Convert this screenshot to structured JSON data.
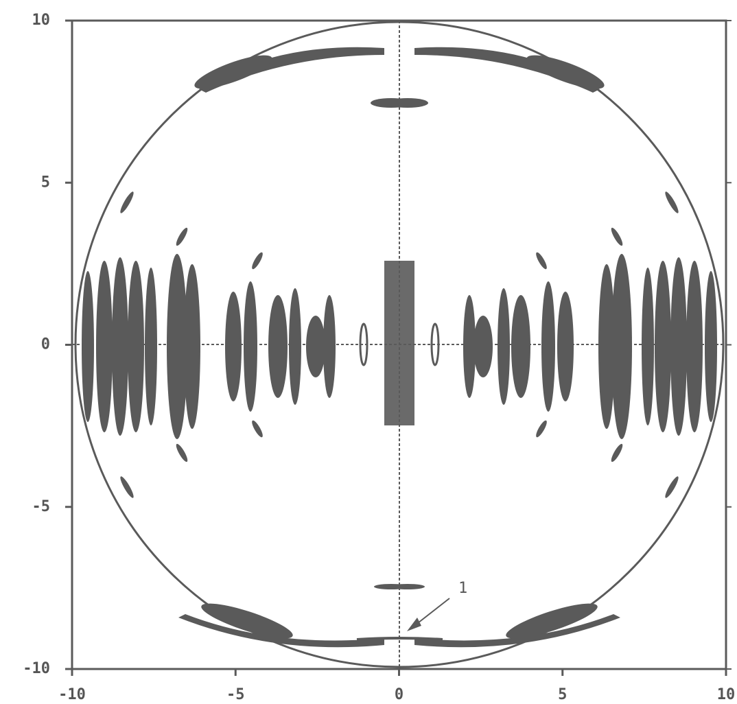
{
  "chart_data": {
    "type": "contour",
    "xlim": [
      -10,
      10
    ],
    "ylim": [
      -10,
      10
    ],
    "xticks": [
      -10,
      -5,
      0,
      5,
      10
    ],
    "yticks": [
      -10,
      -5,
      0,
      5,
      10
    ],
    "color": "#5a5a5a",
    "annotations": [
      {
        "text": "1"
      }
    ]
  }
}
